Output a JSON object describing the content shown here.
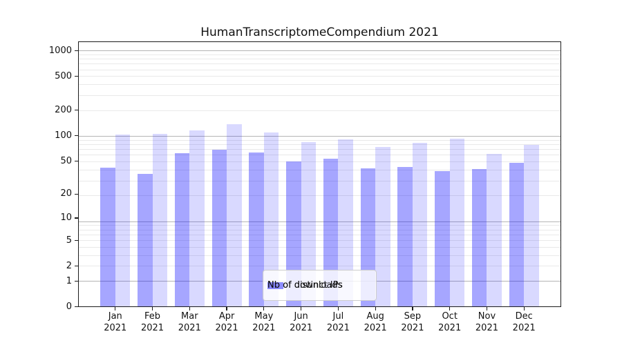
{
  "title": "HumanTranscriptomeCompendium 2021",
  "legend": {
    "items": [
      {
        "label": "Nb of distinct IPs",
        "color": "rgba(0,0,255,0.35)"
      },
      {
        "label": "Nb of downloads",
        "color": "rgba(0,0,255,0.15)"
      }
    ]
  },
  "x_axis": {
    "months": [
      "Jan",
      "Feb",
      "Mar",
      "Apr",
      "May",
      "Jun",
      "Jul",
      "Aug",
      "Sep",
      "Oct",
      "Nov",
      "Dec"
    ],
    "year": "2021"
  },
  "y_axis": {
    "tick_labels": [
      "0",
      "1",
      "2",
      "5",
      "10",
      "20",
      "50",
      "100",
      "200",
      "500",
      "1000"
    ],
    "tick_values": [
      0,
      1,
      2,
      5,
      10,
      20,
      50,
      100,
      200,
      500,
      1000
    ]
  },
  "chart_data": {
    "type": "bar",
    "title": "HumanTranscriptomeCompendium 2021",
    "categories": [
      "Jan 2021",
      "Feb 2021",
      "Mar 2021",
      "Apr 2021",
      "May 2021",
      "Jun 2021",
      "Jul 2021",
      "Aug 2021",
      "Sep 2021",
      "Oct 2021",
      "Nov 2021",
      "Dec 2021"
    ],
    "series": [
      {
        "name": "Nb of distinct IPs",
        "color": "rgba(0,0,255,0.35)",
        "values": [
          42,
          35,
          62,
          68,
          64,
          50,
          54,
          41,
          43,
          38,
          40,
          48
        ]
      },
      {
        "name": "Nb of downloads",
        "color": "rgba(0,0,255,0.15)",
        "values": [
          103,
          106,
          116,
          138,
          110,
          85,
          90,
          74,
          83,
          92,
          61,
          78
        ]
      }
    ],
    "xlabel": "",
    "ylabel": "",
    "yscale": "log10(value+1)",
    "ylim": [
      0,
      1290
    ],
    "yticks": [
      0,
      1,
      2,
      5,
      10,
      20,
      50,
      100,
      200,
      500,
      1000
    ],
    "grid": "horizontal major + minor",
    "legend_position": "lower center (inside axes)"
  }
}
